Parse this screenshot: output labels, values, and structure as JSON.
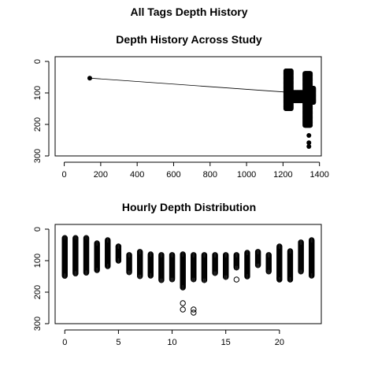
{
  "page_title": "All Tags Depth History",
  "chart_data": [
    {
      "type": "line",
      "title": "Depth History Across Study",
      "xlabel": "",
      "ylabel": "",
      "xlim": [
        -50,
        1410
      ],
      "ylim": [
        300,
        -15
      ],
      "xticks": [
        0,
        200,
        400,
        600,
        800,
        1000,
        1200,
        1400
      ],
      "yticks": [
        0,
        100,
        200,
        300
      ],
      "grid": false,
      "series": [
        {
          "points": [
            [
              140,
              53
            ],
            [
              1230,
              98
            ],
            [
              1340,
              110
            ],
            [
              1360,
              105
            ]
          ],
          "clusters": [
            {
              "x_range": [
                1215,
                1245
              ],
              "y_range": [
                30,
                150
              ]
            },
            {
              "x_range": [
                1245,
                1320
              ],
              "y_range": [
                98,
                125
              ]
            },
            {
              "x_range": [
                1320,
                1350
              ],
              "y_range": [
                38,
                205
              ]
            },
            {
              "x_range": [
                1350,
                1368
              ],
              "y_range": [
                85,
                130
              ]
            }
          ],
          "outliers": [
            [
              1342,
              235
            ],
            [
              1342,
              258
            ],
            [
              1342,
              270
            ]
          ]
        }
      ]
    },
    {
      "type": "scatter",
      "title": "Hourly Depth Distribution",
      "xlabel": "",
      "ylabel": "",
      "xlim": [
        -0.9,
        23.9
      ],
      "ylim": [
        300,
        -15
      ],
      "xticks": [
        0,
        5,
        10,
        15,
        20
      ],
      "yticks": [
        0,
        100,
        200,
        300
      ],
      "grid": false,
      "hours": [
        0,
        1,
        2,
        3,
        4,
        5,
        6,
        7,
        8,
        9,
        10,
        11,
        12,
        13,
        14,
        15,
        16,
        17,
        18,
        19,
        20,
        21,
        22,
        23
      ],
      "ranges": [
        [
          28,
          148
        ],
        [
          28,
          142
        ],
        [
          28,
          140
        ],
        [
          45,
          130
        ],
        [
          35,
          118
        ],
        [
          55,
          100
        ],
        [
          82,
          138
        ],
        [
          72,
          150
        ],
        [
          80,
          148
        ],
        [
          82,
          162
        ],
        [
          82,
          160
        ],
        [
          80,
          185
        ],
        [
          82,
          160
        ],
        [
          82,
          162
        ],
        [
          82,
          140
        ],
        [
          82,
          152
        ],
        [
          82,
          122
        ],
        [
          75,
          150
        ],
        [
          72,
          115
        ],
        [
          82,
          135
        ],
        [
          55,
          160
        ],
        [
          70,
          162
        ],
        [
          42,
          135
        ],
        [
          35,
          148
        ]
      ],
      "outliers": [
        [
          11,
          235
        ],
        [
          11,
          255
        ],
        [
          12,
          255
        ],
        [
          12,
          265
        ],
        [
          16,
          160
        ],
        [
          20,
          155
        ],
        [
          5,
          55
        ]
      ]
    }
  ]
}
